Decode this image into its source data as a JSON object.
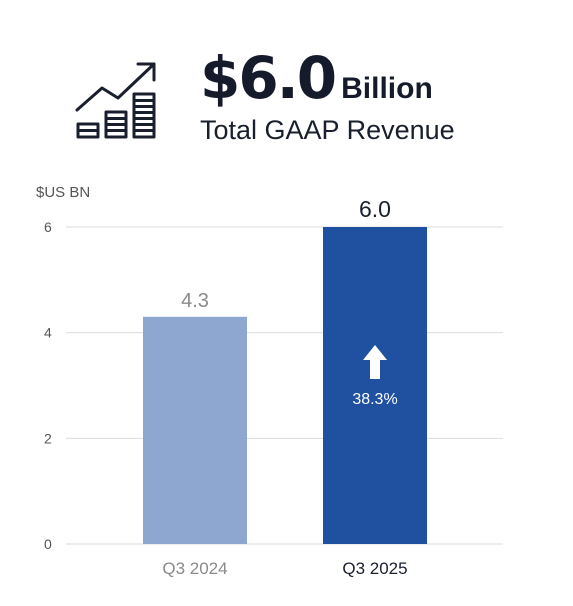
{
  "header": {
    "icon": "bar-chart-trend-up-icon",
    "value": "$6.0",
    "unit": "Billion",
    "subtitle": "Total GAAP Revenue"
  },
  "colors": {
    "bar_prior": "#8ea7d0",
    "bar_current": "#2050a0",
    "grid": "#dcdcdc",
    "axis_text": "#555555",
    "label_prior": "#8a8a8a",
    "label_current": "#1a1f2e"
  },
  "chart_data": {
    "type": "bar",
    "ylabel": "$US BN",
    "yticks": [
      0,
      2,
      4,
      6
    ],
    "ylim": [
      0,
      6
    ],
    "grid": true,
    "categories": [
      "Q3 2024",
      "Q3 2025"
    ],
    "values": [
      4.3,
      6.0
    ],
    "value_labels": [
      "4.3",
      "6.0"
    ],
    "annotation": {
      "text": "38.3%",
      "icon": "arrow-up-icon",
      "bar_index": 1
    }
  }
}
